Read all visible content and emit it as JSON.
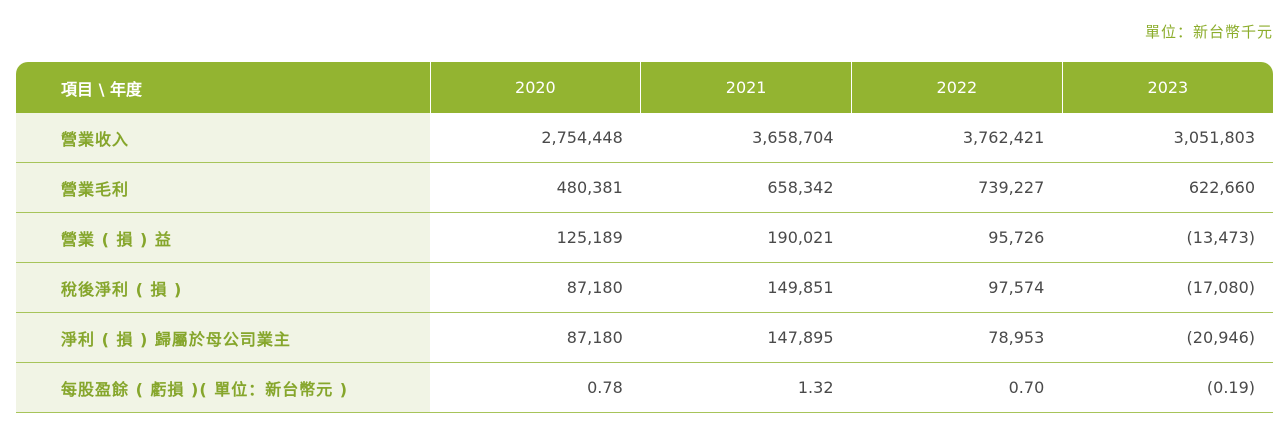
{
  "unit_note": "單位：新台幣千元",
  "table": {
    "header": {
      "label": "項目 \\ 年度",
      "years": [
        "2020",
        "2021",
        "2022",
        "2023"
      ]
    },
    "rows": [
      {
        "label": "營業收入",
        "values": [
          "2,754,448",
          "3,658,704",
          "3,762,421",
          "3,051,803"
        ]
      },
      {
        "label": "營業毛利",
        "values": [
          "480,381",
          "658,342",
          "739,227",
          "622,660"
        ]
      },
      {
        "label": "營業 ( 損 ) 益",
        "values": [
          "125,189",
          "190,021",
          "95,726",
          "(13,473)"
        ]
      },
      {
        "label": "稅後淨利 ( 損 )",
        "values": [
          "87,180",
          "149,851",
          "97,574",
          "(17,080)"
        ]
      },
      {
        "label": "淨利 ( 損 ) 歸屬於母公司業主",
        "values": [
          "87,180",
          "147,895",
          "78,953",
          "(20,946)"
        ]
      },
      {
        "label": "每股盈餘 ( 虧損 )( 單位：新台幣元 )",
        "values": [
          "0.78",
          "1.32",
          "0.70",
          "(0.19)"
        ]
      }
    ]
  },
  "colors": {
    "header_bg": "#93b431",
    "label_text": "#86a62c",
    "label_bg": "#f1f4e5",
    "row_border": "#a7c45a"
  }
}
